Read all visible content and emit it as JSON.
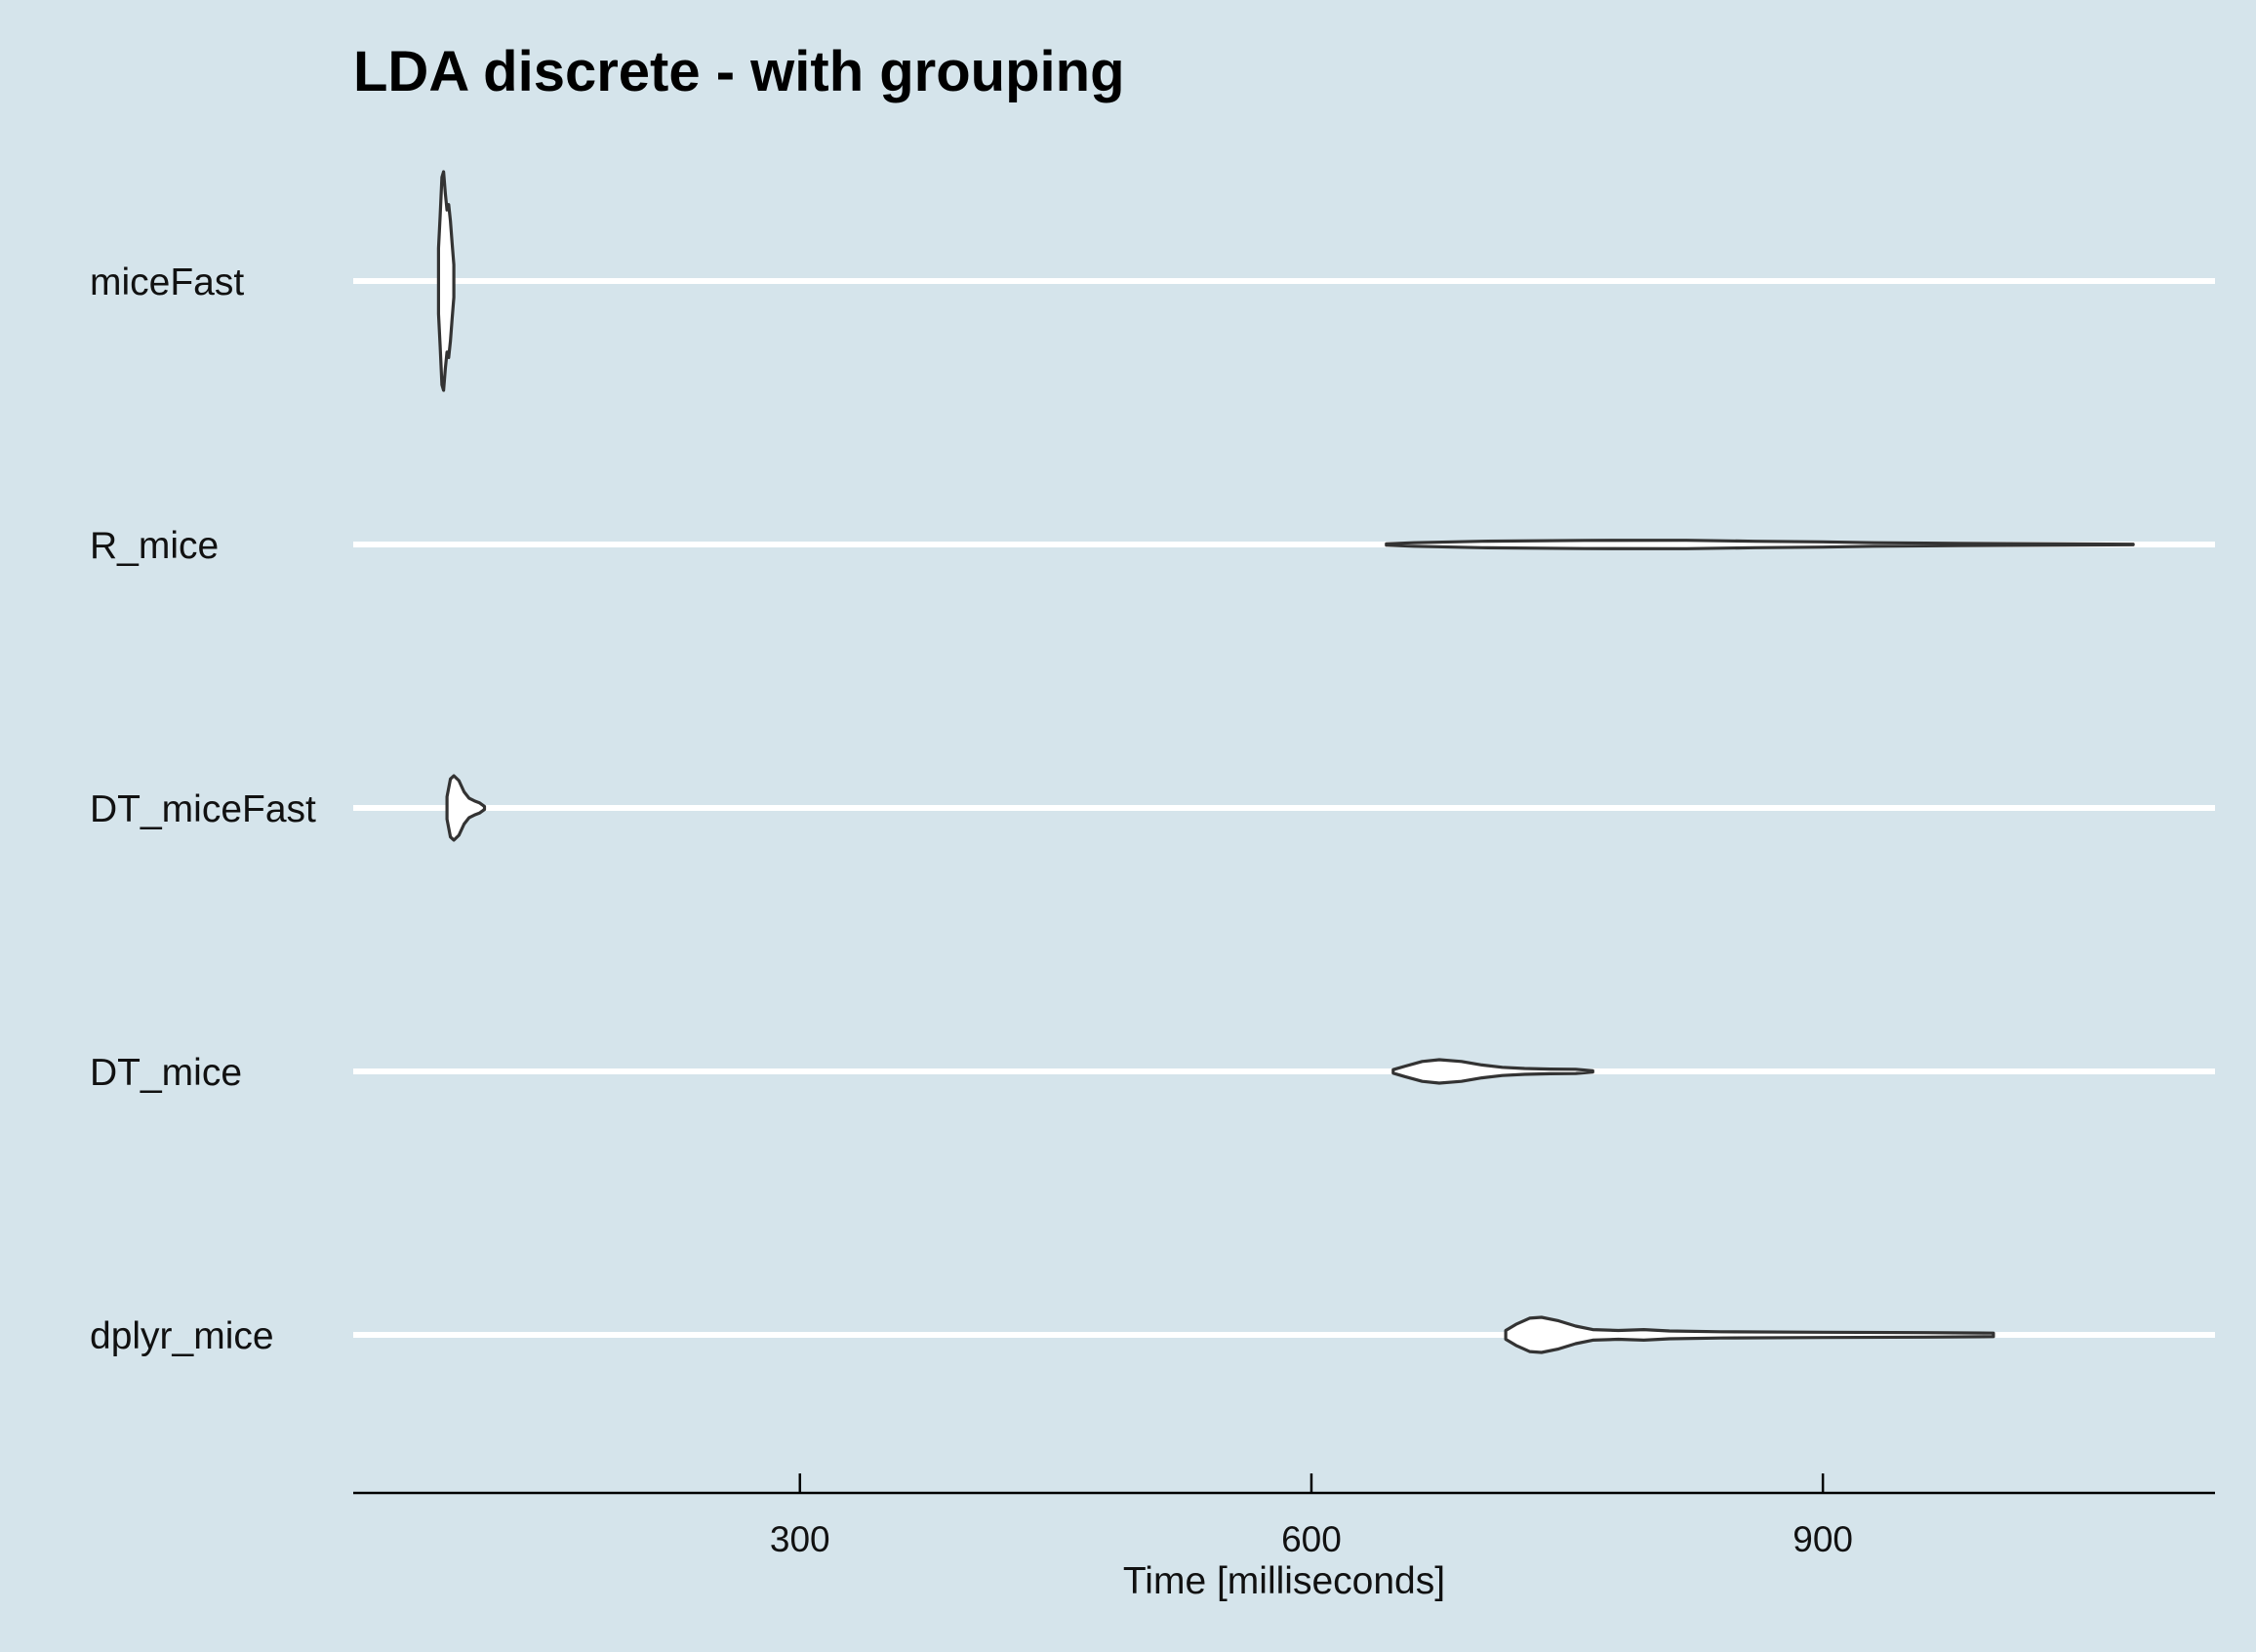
{
  "chart_data": {
    "type": "violin",
    "title": "LDA discrete - with grouping",
    "xlabel": "Time [milliseconds]",
    "ylabel": "",
    "xlim": [
      38,
      1130
    ],
    "x_ticks": [
      300,
      600,
      900
    ],
    "grid": "horizontal major only",
    "colors": {
      "background": "#d5e4eb",
      "gridline": "#ffffff",
      "violin_fill": "#ffffff",
      "violin_outline": "#333333"
    },
    "categories": [
      "miceFast",
      "R_mice",
      "DT_miceFast",
      "DT_mice",
      "dplyr_mice"
    ],
    "series": [
      {
        "category": "miceFast",
        "min": 88,
        "max": 97,
        "profile": [
          [
            88,
            0.3
          ],
          [
            89,
            0.6
          ],
          [
            90,
            0.95
          ],
          [
            91,
            1.0
          ],
          [
            92,
            0.8
          ],
          [
            93,
            0.65
          ],
          [
            94,
            0.7
          ],
          [
            95,
            0.55
          ],
          [
            96,
            0.35
          ],
          [
            97,
            0.15
          ]
        ],
        "max_half_height": 112
      },
      {
        "category": "R_mice",
        "min": 644,
        "max": 1082,
        "profile": [
          [
            644,
            0.12
          ],
          [
            660,
            0.3
          ],
          [
            700,
            0.55
          ],
          [
            760,
            0.7
          ],
          [
            820,
            0.72
          ],
          [
            860,
            0.55
          ],
          [
            900,
            0.45
          ],
          [
            930,
            0.3
          ],
          [
            980,
            0.2
          ],
          [
            1040,
            0.12
          ],
          [
            1082,
            0.05
          ]
        ],
        "max_half_height": 6
      },
      {
        "category": "DT_miceFast",
        "min": 93,
        "max": 115,
        "profile": [
          [
            93,
            0.35
          ],
          [
            95,
            0.9
          ],
          [
            97,
            1.0
          ],
          [
            100,
            0.85
          ],
          [
            103,
            0.5
          ],
          [
            106,
            0.3
          ],
          [
            109,
            0.22
          ],
          [
            112,
            0.16
          ],
          [
            115,
            0.05
          ]
        ],
        "max_half_height": 33
      },
      {
        "category": "DT_mice",
        "min": 648,
        "max": 765,
        "profile": [
          [
            648,
            0.15
          ],
          [
            655,
            0.45
          ],
          [
            665,
            0.85
          ],
          [
            675,
            1.0
          ],
          [
            688,
            0.85
          ],
          [
            700,
            0.55
          ],
          [
            712,
            0.35
          ],
          [
            725,
            0.25
          ],
          [
            740,
            0.2
          ],
          [
            755,
            0.18
          ],
          [
            765,
            0.05
          ]
        ],
        "max_half_height": 12
      },
      {
        "category": "dplyr_mice",
        "min": 714,
        "max": 1000,
        "profile": [
          [
            714,
            0.25
          ],
          [
            720,
            0.6
          ],
          [
            728,
            0.95
          ],
          [
            735,
            1.0
          ],
          [
            745,
            0.8
          ],
          [
            755,
            0.5
          ],
          [
            765,
            0.3
          ],
          [
            780,
            0.25
          ],
          [
            795,
            0.3
          ],
          [
            810,
            0.22
          ],
          [
            840,
            0.18
          ],
          [
            900,
            0.15
          ],
          [
            960,
            0.13
          ],
          [
            1000,
            0.1
          ]
        ],
        "max_half_height": 18
      }
    ]
  }
}
